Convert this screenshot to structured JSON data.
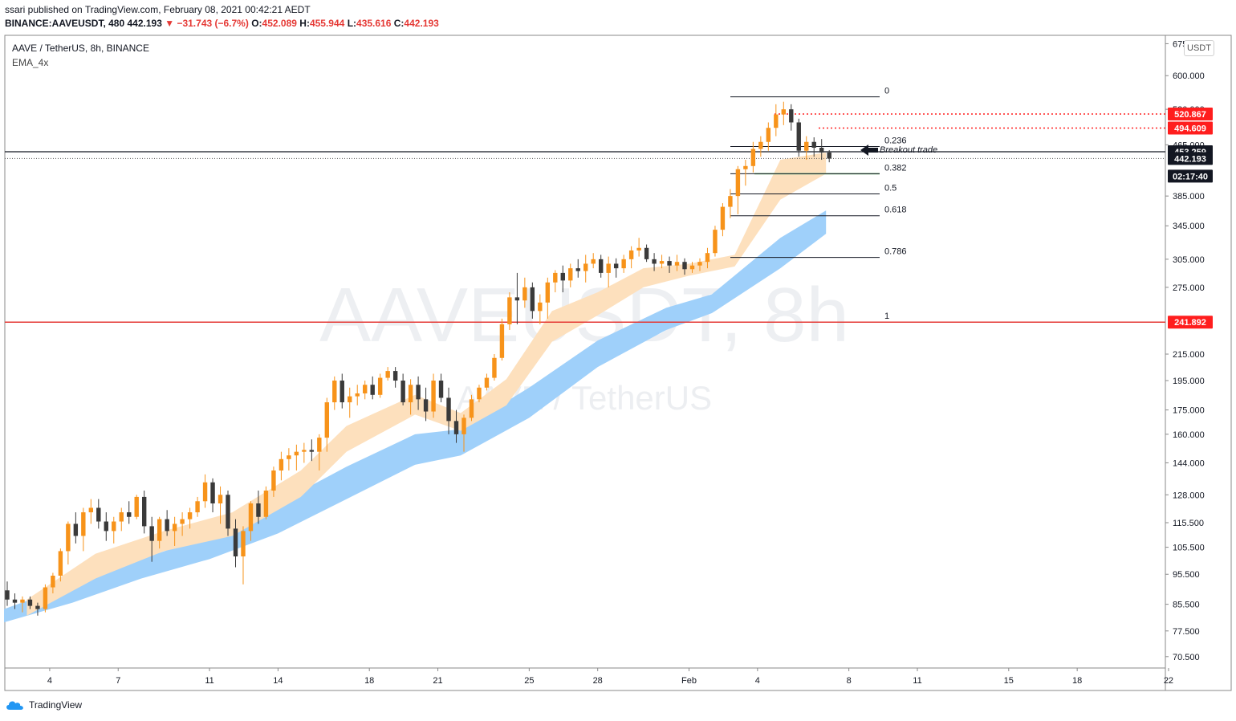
{
  "header": {
    "publisher": "ssari published on TradingView.com, February 08, 2021 00:42:21 AEDT",
    "ticker": "BINANCE:AAVEUSDT, 480",
    "last": "442.193",
    "change": "−31.743 (−6.7%)",
    "o_label": "O:",
    "o_val": "452.089",
    "h_label": "H:",
    "h_val": "455.944",
    "l_label": "L:",
    "l_val": "435.616",
    "c_label": "C:",
    "c_val": "442.193"
  },
  "symbol_line": "AAVE / TetherUS, 8h, BINANCE",
  "indicator": "EMA_4x",
  "unit_button": "USDT",
  "watermark": {
    "line1": "AAVEUSDT, 8h",
    "line2": "AAVE / TetherUS"
  },
  "brand": "TradingView",
  "colors": {
    "up": "#f7931a",
    "down": "#3a3a3a",
    "ema_fast": "#fde0bd",
    "ema_slow": "#9fd0fa",
    "red_line": "#e53935",
    "hline": "#131722"
  },
  "chart_data": {
    "type": "candlestick",
    "y_scale": "log",
    "ylim": [
      68,
      690
    ],
    "y_ticks": [
      "675.000",
      "600.000",
      "530.000",
      "465.000",
      "385.000",
      "345.000",
      "305.000",
      "275.000",
      "215.000",
      "195.000",
      "175.000",
      "160.000",
      "144.000",
      "128.000",
      "115.500",
      "105.500",
      "95.500",
      "85.500",
      "77.500",
      "70.500"
    ],
    "x_ticks": [
      "4",
      "7",
      "11",
      "14",
      "18",
      "21",
      "25",
      "28",
      "Feb",
      "4",
      "8",
      "11",
      "15",
      "18",
      "22"
    ],
    "x_tick_dates": [
      "2021-01-04",
      "2021-01-07",
      "2021-01-11",
      "2021-01-14",
      "2021-01-18",
      "2021-01-21",
      "2021-01-25",
      "2021-01-28",
      "2021-02-01",
      "2021-02-04",
      "2021-02-08",
      "2021-02-11",
      "2021-02-15",
      "2021-02-18",
      "2021-02-22"
    ],
    "fib_levels": [
      {
        "label": "0",
        "value": 555
      },
      {
        "label": "0.236",
        "value": 462
      },
      {
        "label": "0.382",
        "value": 418
      },
      {
        "label": "0.5",
        "value": 388
      },
      {
        "label": "0.618",
        "value": 358
      },
      {
        "label": "0.786",
        "value": 307
      },
      {
        "label": "1",
        "value": 241.892
      }
    ],
    "price_badges": [
      {
        "label": "520.867",
        "value": 520.867,
        "color": "#ff1e1e"
      },
      {
        "label": "494.609",
        "value": 494.609,
        "color": "#ff1e1e"
      },
      {
        "label": "453.259",
        "value": 453.259,
        "color": "#131722"
      },
      {
        "label": "442.193",
        "value": 442.193,
        "color": "#131722"
      },
      {
        "label": "241.892",
        "value": 241.892,
        "color": "#ff1e1e"
      }
    ],
    "countdown": "02:17:40",
    "annotation": "Breakout trade",
    "candles_start": "2021-01-02",
    "candles_per_day": 3,
    "candles": [
      [
        90,
        93,
        85,
        87
      ],
      [
        87,
        89,
        84,
        86
      ],
      [
        86,
        88,
        83,
        87
      ],
      [
        87,
        88,
        84,
        85
      ],
      [
        85,
        86,
        82,
        84
      ],
      [
        84,
        92,
        83,
        91
      ],
      [
        91,
        96,
        89,
        95
      ],
      [
        95,
        105,
        93,
        104
      ],
      [
        104,
        116,
        99,
        115
      ],
      [
        115,
        120,
        107,
        110
      ],
      [
        110,
        122,
        104,
        120
      ],
      [
        120,
        126,
        115,
        122
      ],
      [
        122,
        126,
        113,
        116
      ],
      [
        116,
        120,
        108,
        112
      ],
      [
        112,
        118,
        107,
        116
      ],
      [
        116,
        122,
        112,
        120
      ],
      [
        120,
        125,
        115,
        118
      ],
      [
        118,
        128,
        117,
        127
      ],
      [
        127,
        130,
        111,
        114
      ],
      [
        114,
        118,
        100,
        108
      ],
      [
        108,
        118,
        105,
        117
      ],
      [
        117,
        121,
        110,
        112
      ],
      [
        112,
        118,
        106,
        115
      ],
      [
        115,
        120,
        110,
        117
      ],
      [
        117,
        122,
        113,
        120
      ],
      [
        120,
        127,
        118,
        125
      ],
      [
        125,
        138,
        122,
        134
      ],
      [
        134,
        136,
        120,
        124
      ],
      [
        124,
        132,
        115,
        128
      ],
      [
        128,
        130,
        110,
        113
      ],
      [
        113,
        117,
        98,
        102
      ],
      [
        102,
        114,
        92,
        112
      ],
      [
        112,
        125,
        108,
        124
      ],
      [
        124,
        130,
        115,
        118
      ],
      [
        118,
        132,
        117,
        130
      ],
      [
        130,
        142,
        127,
        140
      ],
      [
        140,
        150,
        135,
        146
      ],
      [
        146,
        152,
        140,
        148
      ],
      [
        148,
        154,
        140,
        150
      ],
      [
        150,
        155,
        144,
        151
      ],
      [
        151,
        157,
        145,
        150
      ],
      [
        150,
        160,
        140,
        158
      ],
      [
        158,
        183,
        150,
        180
      ],
      [
        180,
        198,
        175,
        195
      ],
      [
        195,
        200,
        176,
        180
      ],
      [
        180,
        190,
        170,
        184
      ],
      [
        184,
        192,
        178,
        186
      ],
      [
        186,
        195,
        182,
        192
      ],
      [
        192,
        198,
        182,
        185
      ],
      [
        185,
        200,
        183,
        197
      ],
      [
        197,
        205,
        195,
        202
      ],
      [
        202,
        205,
        190,
        195
      ],
      [
        195,
        200,
        178,
        180
      ],
      [
        180,
        196,
        172,
        192
      ],
      [
        192,
        198,
        175,
        182
      ],
      [
        182,
        190,
        168,
        174
      ],
      [
        174,
        200,
        170,
        195
      ],
      [
        195,
        200,
        180,
        183
      ],
      [
        183,
        190,
        160,
        168
      ],
      [
        168,
        175,
        155,
        160
      ],
      [
        160,
        172,
        150,
        170
      ],
      [
        170,
        185,
        168,
        182
      ],
      [
        182,
        192,
        180,
        190
      ],
      [
        190,
        200,
        188,
        197
      ],
      [
        197,
        215,
        195,
        212
      ],
      [
        212,
        245,
        210,
        240
      ],
      [
        240,
        270,
        235,
        265
      ],
      [
        265,
        290,
        240,
        262
      ],
      [
        262,
        285,
        255,
        275
      ],
      [
        275,
        280,
        245,
        252
      ],
      [
        252,
        268,
        240,
        260
      ],
      [
        260,
        285,
        245,
        280
      ],
      [
        280,
        293,
        270,
        290
      ],
      [
        290,
        298,
        270,
        282
      ],
      [
        282,
        300,
        275,
        295
      ],
      [
        295,
        305,
        285,
        292
      ],
      [
        292,
        310,
        280,
        300
      ],
      [
        300,
        312,
        295,
        305
      ],
      [
        305,
        310,
        285,
        290
      ],
      [
        290,
        308,
        275,
        300
      ],
      [
        300,
        306,
        285,
        295
      ],
      [
        295,
        310,
        290,
        305
      ],
      [
        305,
        320,
        295,
        315
      ],
      [
        315,
        330,
        308,
        318
      ],
      [
        318,
        322,
        302,
        305
      ],
      [
        305,
        312,
        292,
        300
      ],
      [
        300,
        310,
        295,
        303
      ],
      [
        303,
        308,
        290,
        298
      ],
      [
        298,
        310,
        292,
        302
      ],
      [
        302,
        306,
        288,
        294
      ],
      [
        294,
        302,
        290,
        298
      ],
      [
        298,
        306,
        292,
        302
      ],
      [
        302,
        318,
        295,
        312
      ],
      [
        312,
        345,
        308,
        340
      ],
      [
        340,
        375,
        332,
        370
      ],
      [
        370,
        395,
        355,
        385
      ],
      [
        385,
        430,
        360,
        425
      ],
      [
        425,
        440,
        400,
        430
      ],
      [
        430,
        470,
        420,
        458
      ],
      [
        458,
        480,
        445,
        470
      ],
      [
        470,
        505,
        455,
        495
      ],
      [
        495,
        540,
        480,
        520
      ],
      [
        520,
        545,
        500,
        530
      ],
      [
        530,
        540,
        490,
        505
      ],
      [
        505,
        512,
        445,
        455
      ],
      [
        455,
        480,
        440,
        470
      ],
      [
        470,
        478,
        445,
        460
      ],
      [
        460,
        475,
        440,
        452
      ],
      [
        452,
        456,
        436,
        442
      ]
    ],
    "ema_fast_band": {
      "upper": [
        {
          "date": "2021-01-03",
          "value": 87
        },
        {
          "date": "2021-01-06",
          "value": 103
        },
        {
          "date": "2021-01-09",
          "value": 112
        },
        {
          "date": "2021-01-12",
          "value": 120
        },
        {
          "date": "2021-01-15",
          "value": 140
        },
        {
          "date": "2021-01-17",
          "value": 165
        },
        {
          "date": "2021-01-20",
          "value": 185
        },
        {
          "date": "2021-01-22",
          "value": 173
        },
        {
          "date": "2021-01-24",
          "value": 196
        },
        {
          "date": "2021-01-26",
          "value": 252
        },
        {
          "date": "2021-01-28",
          "value": 270
        },
        {
          "date": "2021-01-30",
          "value": 295
        },
        {
          "date": "2021-02-01",
          "value": 300
        },
        {
          "date": "2021-02-03",
          "value": 310
        },
        {
          "date": "2021-02-05",
          "value": 440
        },
        {
          "date": "2021-02-07",
          "value": 452
        }
      ],
      "lower": [
        {
          "date": "2021-01-03",
          "value": 82
        },
        {
          "date": "2021-01-06",
          "value": 94
        },
        {
          "date": "2021-01-09",
          "value": 104
        },
        {
          "date": "2021-01-12",
          "value": 110
        },
        {
          "date": "2021-01-15",
          "value": 127
        },
        {
          "date": "2021-01-17",
          "value": 150
        },
        {
          "date": "2021-01-20",
          "value": 172
        },
        {
          "date": "2021-01-22",
          "value": 162
        },
        {
          "date": "2021-01-24",
          "value": 178
        },
        {
          "date": "2021-01-26",
          "value": 225
        },
        {
          "date": "2021-01-28",
          "value": 248
        },
        {
          "date": "2021-01-30",
          "value": 275
        },
        {
          "date": "2021-02-01",
          "value": 287
        },
        {
          "date": "2021-02-03",
          "value": 297
        },
        {
          "date": "2021-02-05",
          "value": 380
        },
        {
          "date": "2021-02-07",
          "value": 418
        }
      ]
    },
    "ema_slow_band": {
      "upper": [
        {
          "date": "2021-01-02",
          "value": 84
        },
        {
          "date": "2021-01-05",
          "value": 92
        },
        {
          "date": "2021-01-08",
          "value": 101
        },
        {
          "date": "2021-01-11",
          "value": 110
        },
        {
          "date": "2021-01-14",
          "value": 124
        },
        {
          "date": "2021-01-17",
          "value": 142
        },
        {
          "date": "2021-01-20",
          "value": 160
        },
        {
          "date": "2021-01-22",
          "value": 163
        },
        {
          "date": "2021-01-25",
          "value": 190
        },
        {
          "date": "2021-01-28",
          "value": 226
        },
        {
          "date": "2021-01-31",
          "value": 255
        },
        {
          "date": "2021-02-02",
          "value": 268
        },
        {
          "date": "2021-02-05",
          "value": 330
        },
        {
          "date": "2021-02-07",
          "value": 365
        }
      ],
      "lower": [
        {
          "date": "2021-01-02",
          "value": 80
        },
        {
          "date": "2021-01-05",
          "value": 86
        },
        {
          "date": "2021-01-08",
          "value": 94
        },
        {
          "date": "2021-01-11",
          "value": 101
        },
        {
          "date": "2021-01-14",
          "value": 111
        },
        {
          "date": "2021-01-17",
          "value": 126
        },
        {
          "date": "2021-01-20",
          "value": 143
        },
        {
          "date": "2021-01-22",
          "value": 148
        },
        {
          "date": "2021-01-25",
          "value": 170
        },
        {
          "date": "2021-01-28",
          "value": 205
        },
        {
          "date": "2021-01-31",
          "value": 235
        },
        {
          "date": "2021-02-02",
          "value": 250
        },
        {
          "date": "2021-02-05",
          "value": 295
        },
        {
          "date": "2021-02-07",
          "value": 335
        }
      ]
    }
  }
}
